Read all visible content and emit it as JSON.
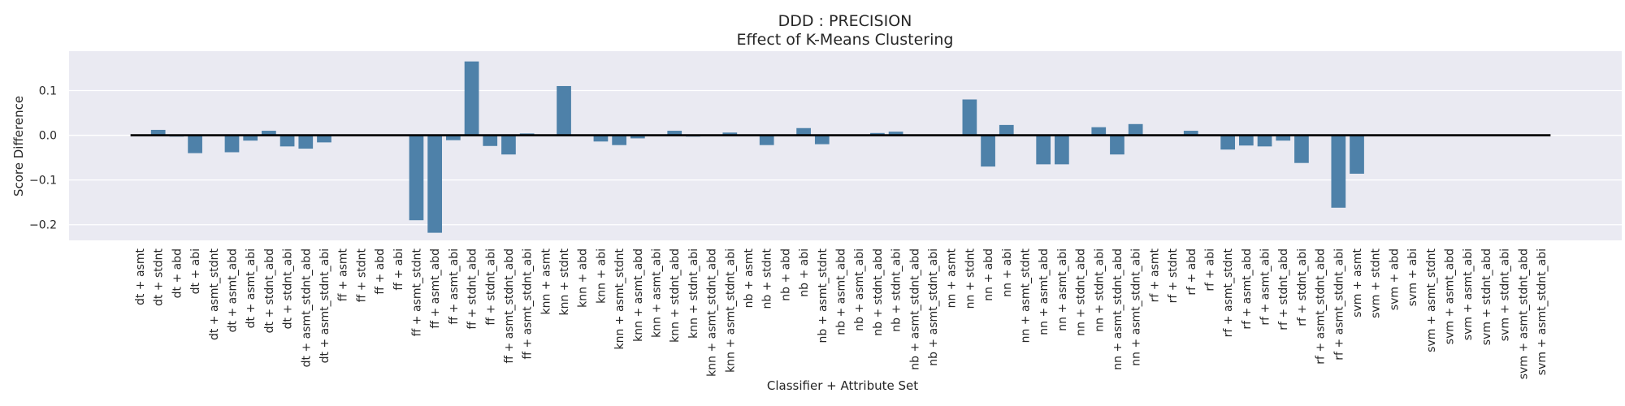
{
  "chart_data": {
    "type": "bar",
    "title": "DDD : PRECISION",
    "subtitle": "Effect of K-Means Clustering",
    "xlabel": "Classifier + Attribute Set",
    "ylabel": "Score Difference",
    "ylim": [
      -0.235,
      0.188
    ],
    "yticks": [
      -0.2,
      -0.1,
      0.0,
      0.1
    ],
    "ytick_labels": [
      "−0.2",
      "−0.1",
      "0.0",
      "0.1"
    ],
    "grid": true,
    "bar_color": "#4e81a9",
    "zero_line_color": "#000000",
    "background_color": "#eaeaf2",
    "categories": [
      "dt + asmt",
      "dt + stdnt",
      "dt + abd",
      "dt + abi",
      "dt + asmt_stdnt",
      "dt + asmt_abd",
      "dt + asmt_abi",
      "dt + stdnt_abd",
      "dt + stdnt_abi",
      "dt + asmt_stdnt_abd",
      "dt + asmt_stdnt_abi",
      "ff + asmt",
      "ff + stdnt",
      "ff + abd",
      "ff + abi",
      "ff + asmt_stdnt",
      "ff + asmt_abd",
      "ff + asmt_abi",
      "ff + stdnt_abd",
      "ff + stdnt_abi",
      "ff + asmt_stdnt_abd",
      "ff + asmt_stdnt_abi",
      "knn + asmt",
      "knn + stdnt",
      "knn + abd",
      "knn + abi",
      "knn + asmt_stdnt",
      "knn + asmt_abd",
      "knn + asmt_abi",
      "knn + stdnt_abd",
      "knn + stdnt_abi",
      "knn + asmt_stdnt_abd",
      "knn + asmt_stdnt_abi",
      "nb + asmt",
      "nb + stdnt",
      "nb + abd",
      "nb + abi",
      "nb + asmt_stdnt",
      "nb + asmt_abd",
      "nb + asmt_abi",
      "nb + stdnt_abd",
      "nb + stdnt_abi",
      "nb + asmt_stdnt_abd",
      "nb + asmt_stdnt_abi",
      "nn + asmt",
      "nn + stdnt",
      "nn + abd",
      "nn + abi",
      "nn + asmt_stdnt",
      "nn + asmt_abd",
      "nn + asmt_abi",
      "nn + stdnt_abd",
      "nn + stdnt_abi",
      "nn + asmt_stdnt_abd",
      "nn + asmt_stdnt_abi",
      "rf + asmt",
      "rf + stdnt",
      "rf + abd",
      "rf + abi",
      "rf + asmt_stdnt",
      "rf + asmt_abd",
      "rf + asmt_abi",
      "rf + stdnt_abd",
      "rf + stdnt_abi",
      "rf + asmt_stdnt_abd",
      "rf + asmt_stdnt_abi",
      "svm + asmt",
      "svm + stdnt",
      "svm + abd",
      "svm + abi",
      "svm + asmt_stdnt",
      "svm + asmt_abd",
      "svm + asmt_abi",
      "svm + stdnt_abd",
      "svm + stdnt_abi",
      "svm + asmt_stdnt_abd",
      "svm + asmt_stdnt_abi"
    ],
    "values": [
      0.0,
      0.012,
      -0.003,
      -0.04,
      0.0,
      -0.038,
      -0.012,
      0.01,
      -0.025,
      -0.03,
      -0.016,
      0.0,
      0.0,
      0.0,
      0.0,
      -0.19,
      -0.218,
      -0.011,
      0.165,
      -0.024,
      -0.043,
      0.004,
      0.0,
      0.11,
      0.0,
      -0.014,
      -0.022,
      -0.007,
      0.0,
      0.01,
      -0.003,
      0.0,
      0.006,
      0.0,
      -0.022,
      0.0,
      0.016,
      -0.02,
      0.0,
      0.0,
      0.005,
      0.008,
      0.0,
      0.0,
      0.0,
      0.08,
      -0.07,
      0.023,
      0.0,
      -0.065,
      -0.065,
      0.0,
      0.018,
      -0.043,
      0.025,
      0.0,
      0.0,
      0.01,
      0.0,
      -0.032,
      -0.023,
      -0.025,
      -0.012,
      -0.062,
      0.0,
      -0.162,
      -0.086,
      0.0,
      0.0,
      0.0,
      0.0,
      0.0,
      0.0,
      0.0,
      0.0,
      0.0,
      0.0
    ]
  }
}
